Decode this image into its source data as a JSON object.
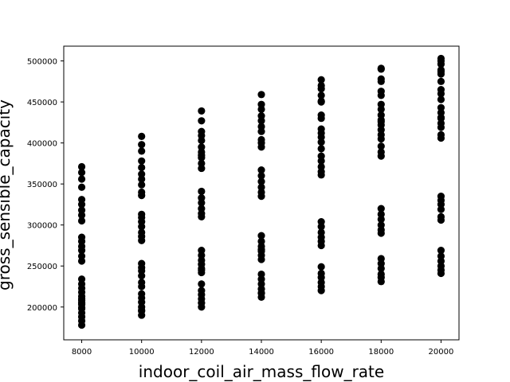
{
  "chart_data": {
    "type": "scatter",
    "xlabel": "indoor_coil_air_mass_flow_rate",
    "ylabel": "gross_sensible_capacity",
    "xlim": [
      7400,
      20600
    ],
    "ylim": [
      160000,
      518000
    ],
    "x_ticks": [
      8000,
      10000,
      12000,
      14000,
      16000,
      18000,
      20000
    ],
    "x_tick_labels": [
      "8000",
      "10000",
      "12000",
      "14000",
      "16000",
      "18000",
      "20000"
    ],
    "y_ticks": [
      200000,
      250000,
      300000,
      350000,
      400000,
      450000,
      500000
    ],
    "y_tick_labels": [
      "200000",
      "250000",
      "300000",
      "350000",
      "400000",
      "450000",
      "500000"
    ],
    "grid": false,
    "marker_color": "#000000",
    "series": [
      {
        "x": [
          8000,
          8000,
          8000,
          8000,
          8000,
          8000,
          8000,
          8000,
          8000,
          8000,
          8000,
          8000,
          8000,
          8000,
          8000,
          8000,
          8000,
          8000,
          8000,
          8000,
          8000,
          8000,
          8000,
          8000,
          8000,
          8000,
          8000,
          8000,
          8000,
          8000,
          10000,
          10000,
          10000,
          10000,
          10000,
          10000,
          10000,
          10000,
          10000,
          10000,
          10000,
          10000,
          10000,
          10000,
          10000,
          10000,
          10000,
          10000,
          10000,
          10000,
          10000,
          10000,
          10000,
          10000,
          10000,
          10000,
          10000,
          10000,
          10000,
          10000,
          12000,
          12000,
          12000,
          12000,
          12000,
          12000,
          12000,
          12000,
          12000,
          12000,
          12000,
          12000,
          12000,
          12000,
          12000,
          12000,
          12000,
          12000,
          12000,
          12000,
          12000,
          12000,
          12000,
          12000,
          12000,
          12000,
          12000,
          12000,
          12000,
          12000,
          14000,
          14000,
          14000,
          14000,
          14000,
          14000,
          14000,
          14000,
          14000,
          14000,
          14000,
          14000,
          14000,
          14000,
          14000,
          14000,
          14000,
          14000,
          14000,
          14000,
          14000,
          14000,
          14000,
          14000,
          14000,
          14000,
          14000,
          14000,
          14000,
          14000,
          16000,
          16000,
          16000,
          16000,
          16000,
          16000,
          16000,
          16000,
          16000,
          16000,
          16000,
          16000,
          16000,
          16000,
          16000,
          16000,
          16000,
          16000,
          16000,
          16000,
          16000,
          16000,
          16000,
          16000,
          16000,
          16000,
          16000,
          16000,
          16000,
          16000,
          18000,
          18000,
          18000,
          18000,
          18000,
          18000,
          18000,
          18000,
          18000,
          18000,
          18000,
          18000,
          18000,
          18000,
          18000,
          18000,
          18000,
          18000,
          18000,
          18000,
          18000,
          18000,
          18000,
          18000,
          18000,
          18000,
          18000,
          18000,
          18000,
          18000,
          20000,
          20000,
          20000,
          20000,
          20000,
          20000,
          20000,
          20000,
          20000,
          20000,
          20000,
          20000,
          20000,
          20000,
          20000,
          20000,
          20000,
          20000,
          20000,
          20000,
          20000,
          20000,
          20000,
          20000,
          20000,
          20000,
          20000,
          20000,
          20000,
          20000
        ],
        "y": [
          178000,
          183000,
          188000,
          193000,
          198000,
          203000,
          208000,
          213000,
          218000,
          223000,
          228000,
          234000,
          256000,
          262000,
          269000,
          274000,
          280000,
          285000,
          305000,
          312000,
          318000,
          325000,
          331000,
          346000,
          356000,
          364000,
          371000,
          199000,
          205000,
          210000,
          190000,
          195000,
          200000,
          206000,
          211000,
          216000,
          225000,
          230000,
          238000,
          244000,
          248000,
          253000,
          281000,
          286000,
          291000,
          298000,
          304000,
          309000,
          313000,
          336000,
          340000,
          349000,
          356000,
          362000,
          370000,
          378000,
          390000,
          398000,
          408000,
          196000,
          200000,
          205000,
          210000,
          215000,
          220000,
          228000,
          242000,
          247000,
          252000,
          257000,
          263000,
          269000,
          310000,
          314000,
          320000,
          327000,
          333000,
          341000,
          369000,
          375000,
          382000,
          389000,
          395000,
          403000,
          409000,
          414000,
          427000,
          439000,
          245000,
          385000,
          212000,
          217000,
          222000,
          228000,
          234000,
          240000,
          258000,
          263000,
          268000,
          274000,
          280000,
          287000,
          335000,
          340000,
          346000,
          353000,
          360000,
          367000,
          395000,
          404000,
          414000,
          420000,
          427000,
          433000,
          441000,
          447000,
          459000,
          400000,
          217000,
          270000,
          220000,
          225000,
          230000,
          236000,
          241000,
          249000,
          275000,
          280000,
          285000,
          291000,
          298000,
          304000,
          361000,
          365000,
          371000,
          378000,
          384000,
          393000,
          401000,
          407000,
          412000,
          417000,
          430000,
          434000,
          450000,
          451000,
          458000,
          466000,
          470000,
          477000,
          231000,
          236000,
          240000,
          247000,
          253000,
          259000,
          290000,
          294000,
          300000,
          307000,
          313000,
          320000,
          384000,
          389000,
          396000,
          405000,
          410000,
          416000,
          422000,
          428000,
          434000,
          441000,
          447000,
          458000,
          463000,
          475000,
          478000,
          490000,
          491000,
          426000,
          241000,
          245000,
          250000,
          256000,
          262000,
          269000,
          306000,
          310000,
          319000,
          325000,
          330000,
          335000,
          406000,
          410000,
          419000,
          424000,
          431000,
          437000,
          443000,
          453000,
          460000,
          465000,
          475000,
          484000,
          487000,
          489000,
          496000,
          500000,
          503000,
          430000
        ]
      }
    ]
  }
}
